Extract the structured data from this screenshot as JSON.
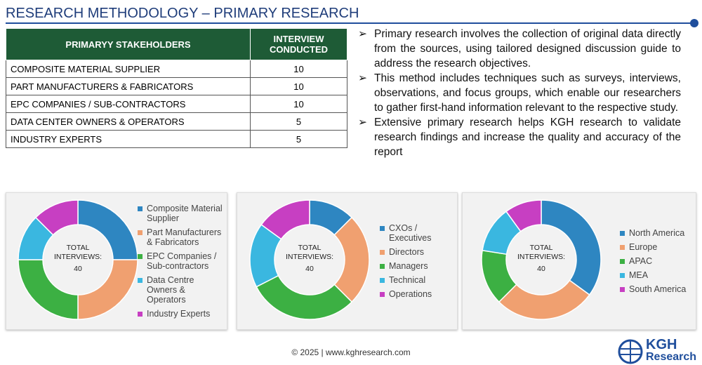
{
  "header": {
    "title": "RESEARCH METHODOLOGY – PRIMARY RESEARCH"
  },
  "table": {
    "columns": [
      "PRIMARYY STAKEHOLDERS",
      "INTERVIEW CONDUCTED"
    ],
    "rows": [
      [
        "COMPOSITE MATERIAL SUPPLIER",
        10
      ],
      [
        "PART MANUFACTURERS & FABRICATORS",
        10
      ],
      [
        "EPC COMPANIES / SUB-CONTRACTORS",
        10
      ],
      [
        "DATA CENTER OWNERS & OPERATORS",
        5
      ],
      [
        "INDUSTRY EXPERTS",
        5
      ]
    ]
  },
  "bullets": [
    "Primary research involves the collection of original data directly from the sources, using tailored designed discussion guide to address the research objectives.",
    "This method includes techniques such as surveys, interviews, observations, and focus groups, which enable our researchers to gather first-hand information relevant to the respective study.",
    "Extensive primary research helps KGH research to validate research findings and increase the quality and accuracy of the report"
  ],
  "chart_data": [
    {
      "type": "donut",
      "center_label": "TOTAL INTERVIEWS:",
      "total": 40,
      "categories": [
        "Composite Material Supplier",
        "Part Manufacturers & Fabricators",
        "EPC Companies / Sub-contractors",
        "Data Centre Owners & Operators",
        "Industry Experts"
      ],
      "values": [
        10,
        10,
        10,
        5,
        5
      ],
      "colors": [
        "#2e86c1",
        "#f0a070",
        "#3cb043",
        "#3ab7e0",
        "#c73fc2"
      ]
    },
    {
      "type": "donut",
      "center_label": "TOTAL INTERVIEWS:",
      "total": 40,
      "categories": [
        "CXOs / Executives",
        "Directors",
        "Managers",
        "Technical",
        "Operations"
      ],
      "values": [
        5,
        10,
        12,
        7,
        6
      ],
      "colors": [
        "#2e86c1",
        "#f0a070",
        "#3cb043",
        "#3ab7e0",
        "#c73fc2"
      ]
    },
    {
      "type": "donut",
      "center_label": "TOTAL INTERVIEWS:",
      "total": 40,
      "categories": [
        "North America",
        "Europe",
        "APAC",
        "MEA",
        "South America"
      ],
      "values": [
        14,
        11,
        6,
        5,
        4
      ],
      "colors": [
        "#2e86c1",
        "#f0a070",
        "#3cb043",
        "#3ab7e0",
        "#c73fc2"
      ]
    }
  ],
  "footer": {
    "text": "© 2025 | www.kghresearch.com"
  },
  "logo": {
    "top": "KGH",
    "bottom": "Research"
  }
}
